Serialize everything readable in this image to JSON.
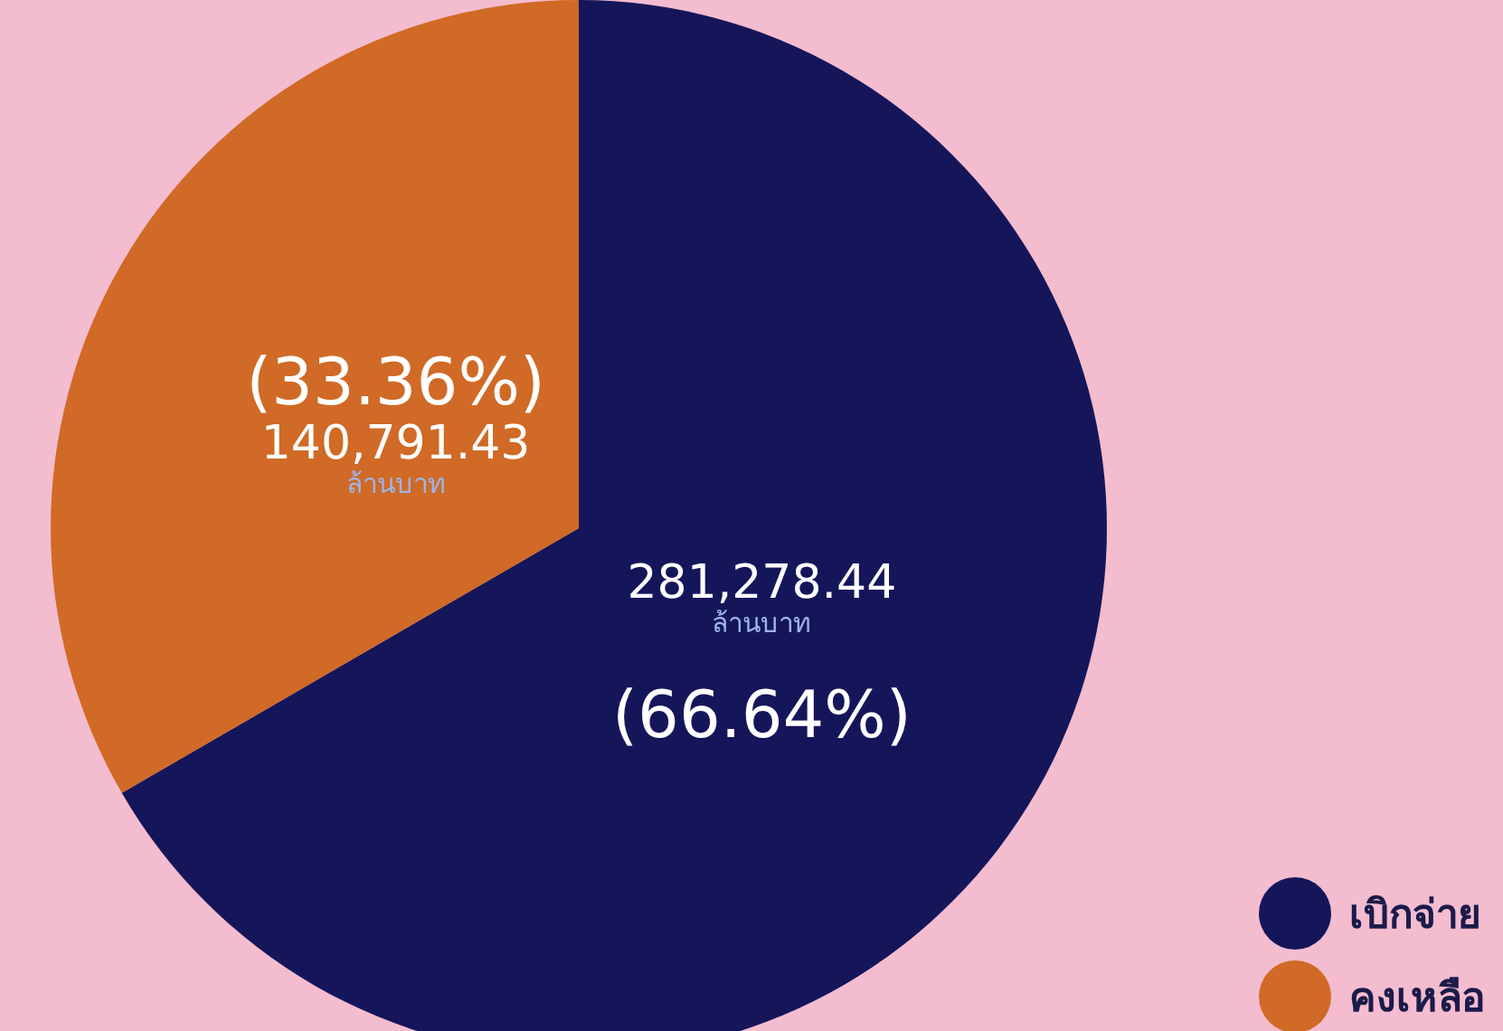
{
  "chart_data": {
    "type": "pie",
    "categories": [
      "เบิกจ่าย",
      "คงเหลือ"
    ],
    "values": [
      281278.44,
      140791.43
    ],
    "colors": [
      "#15165a",
      "#d06a26"
    ],
    "value_labels": [
      "281,278.44",
      "140,791.43"
    ],
    "annotations": [
      {
        "text": "(66.64%)",
        "x": "เบิกจ่าย"
      },
      {
        "text": "ล้านบาท",
        "x": "เบิกจ่าย"
      },
      {
        "text": "(33.36%)",
        "x": "คงเหลือ"
      },
      {
        "text": "ล้านบาท",
        "x": "คงเหลือ"
      }
    ],
    "legend": "bottom right"
  }
}
